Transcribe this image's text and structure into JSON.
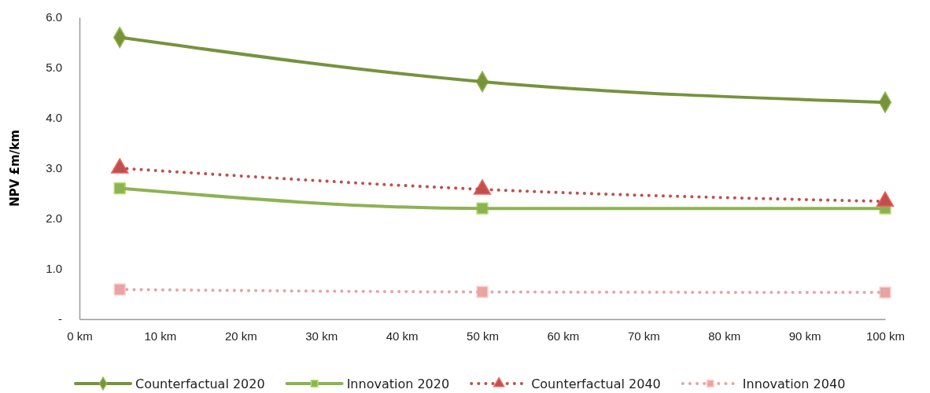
{
  "chart_data": {
    "type": "line",
    "ylabel": "NPV £m/km",
    "x": [
      5,
      50,
      100
    ],
    "xlim": [
      0,
      100
    ],
    "xticks": [
      {
        "value": 0,
        "label": "0 km"
      },
      {
        "value": 10,
        "label": "10 km"
      },
      {
        "value": 20,
        "label": "20 km"
      },
      {
        "value": 30,
        "label": "30 km"
      },
      {
        "value": 40,
        "label": "40 km"
      },
      {
        "value": 50,
        "label": "50 km"
      },
      {
        "value": 60,
        "label": "60 km"
      },
      {
        "value": 70,
        "label": "70 km"
      },
      {
        "value": 80,
        "label": "80 km"
      },
      {
        "value": 90,
        "label": "90 km"
      },
      {
        "value": 100,
        "label": "100 km"
      }
    ],
    "ylim": [
      0,
      6
    ],
    "yticks": [
      {
        "value": 0,
        "label": "-"
      },
      {
        "value": 1,
        "label": "1.0"
      },
      {
        "value": 2,
        "label": "2.0"
      },
      {
        "value": 3,
        "label": "3.0"
      },
      {
        "value": 4,
        "label": "4.0"
      },
      {
        "value": 5,
        "label": "5.0"
      },
      {
        "value": 6,
        "label": "6.0"
      }
    ],
    "grid": false,
    "legend": "bottom",
    "series": [
      {
        "name": "Counterfactual 2020",
        "color": "#76933c",
        "values": [
          5.6,
          4.72,
          4.31
        ],
        "marker": "diamond",
        "line_style": "solid"
      },
      {
        "name": "Innovation 2020",
        "color": "#8db254",
        "values": [
          2.6,
          2.2,
          2.2
        ],
        "marker": "square",
        "line_style": "solid"
      },
      {
        "name": "Counterfactual 2040",
        "color": "#c0504d",
        "values": [
          3.0,
          2.58,
          2.34
        ],
        "marker": "triangle",
        "line_style": "dotted"
      },
      {
        "name": "Innovation 2040",
        "color": "#e6a5a3",
        "values": [
          0.59,
          0.54,
          0.53
        ],
        "marker": "square",
        "line_style": "dotted"
      }
    ]
  }
}
